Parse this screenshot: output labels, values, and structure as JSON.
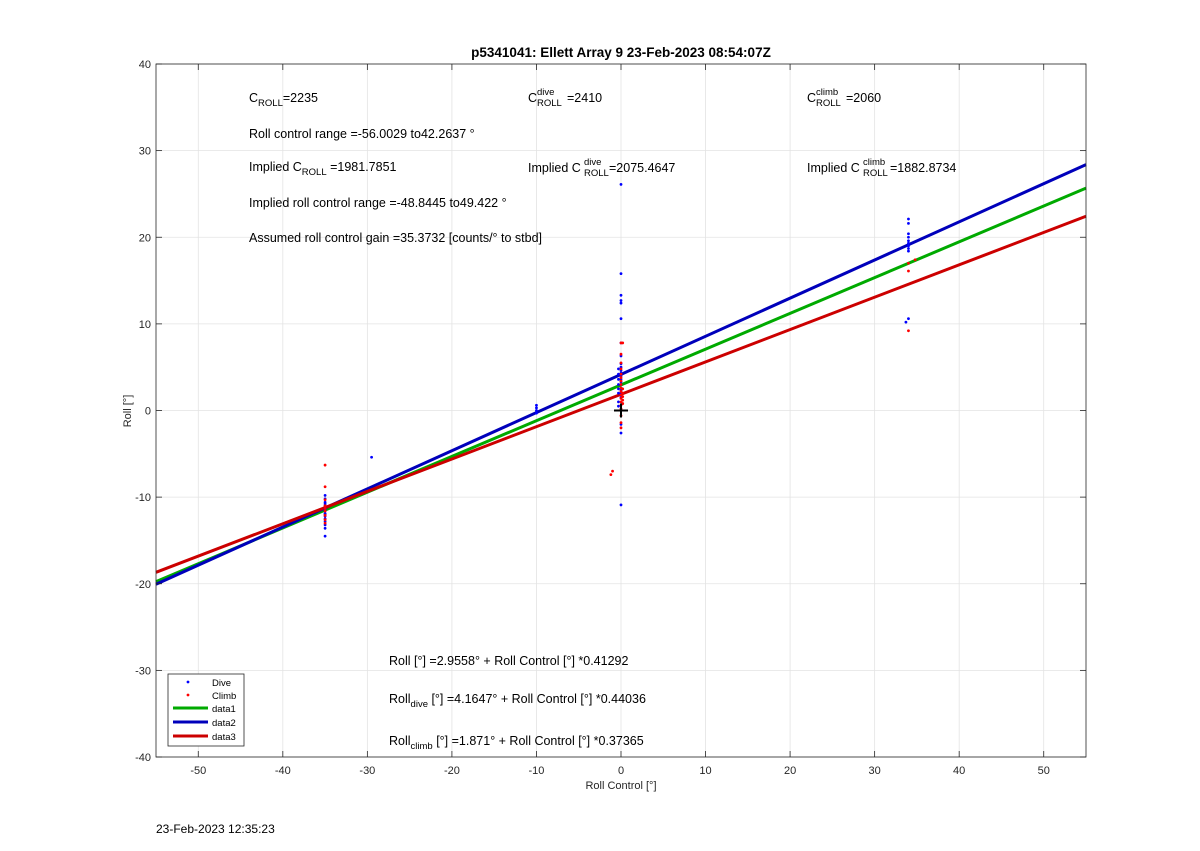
{
  "chart_data": {
    "type": "scatter",
    "title": "p5341041: Ellett Array 9 23-Feb-2023 08:54:07Z",
    "xlabel": "Roll Control [°]",
    "ylabel": "Roll [°]",
    "xlim": [
      -55,
      55
    ],
    "ylim": [
      -40,
      40
    ],
    "xticks": [
      -50,
      -40,
      -30,
      -20,
      -10,
      0,
      10,
      20,
      30,
      40,
      50
    ],
    "yticks": [
      -40,
      -30,
      -20,
      -10,
      0,
      10,
      20,
      30,
      40
    ],
    "grid": true,
    "legend_position": "bottom-left",
    "series": [
      {
        "name": "Dive",
        "kind": "points",
        "color": "#0000ff",
        "x": [
          -35,
          -35,
          -35,
          -35,
          -35,
          -35,
          -35,
          -35,
          -35,
          -35,
          -35,
          -35,
          -35,
          -35,
          -35,
          -35,
          -29.5,
          -10,
          -10,
          -10,
          -10,
          -0.3,
          -0.3,
          -0.3,
          -0.3,
          -0.3,
          -0.3,
          -0.3,
          -0.3,
          0,
          0,
          0,
          0,
          0,
          0,
          0,
          0,
          0,
          0,
          0,
          0,
          0,
          0,
          0,
          0,
          0,
          0,
          0,
          0,
          0,
          0,
          0,
          0,
          34,
          34,
          34,
          34,
          34,
          34,
          34,
          34,
          34,
          34,
          33.7
        ],
        "y": [
          -9.8,
          -10.2,
          -10.6,
          -11.0,
          -11.3,
          -11.6,
          -11.9,
          -12.2,
          -12.5,
          -12.8,
          -13.2,
          -13.6,
          -14.5,
          -10.8,
          -11.4,
          -12.0,
          -5.4,
          0.6,
          0.3,
          0.0,
          -0.3,
          4.8,
          4.2,
          3.6,
          3.0,
          2.5,
          2.0,
          1.0,
          0.5,
          26.1,
          15.8,
          13.3,
          12.7,
          12.4,
          10.6,
          7.8,
          6.3,
          5.4,
          5.0,
          4.6,
          4.3,
          4.0,
          3.6,
          3.3,
          3.0,
          2.6,
          2.3,
          2.0,
          1.5,
          0.0,
          -1.6,
          -2.6,
          -10.9,
          22.1,
          21.6,
          20.4,
          20.0,
          19.6,
          19.3,
          19.0,
          18.7,
          18.4,
          10.6,
          10.2
        ]
      },
      {
        "name": "Climb",
        "kind": "points",
        "color": "#ff0000",
        "x": [
          -35,
          -35,
          -35,
          -35,
          -35,
          -35,
          -35,
          -35,
          -35,
          -1.2,
          -1.0,
          0,
          0,
          0,
          0,
          0,
          0,
          0,
          0,
          0,
          0,
          0,
          0,
          0,
          0,
          0,
          0,
          0,
          0,
          0.2,
          0.2,
          0.2,
          0.2,
          0.2,
          0.2,
          34,
          34,
          34.8,
          34
        ],
        "y": [
          -6.3,
          -8.8,
          -10.3,
          -11.0,
          -11.6,
          -12.1,
          -12.6,
          -13.0,
          -11.3,
          -7.4,
          -7.0,
          7.8,
          6.5,
          5.5,
          4.8,
          4.2,
          3.8,
          3.4,
          3.0,
          2.6,
          2.2,
          1.8,
          1.4,
          1.0,
          0.6,
          0.2,
          -0.6,
          -1.4,
          -2.0,
          7.8,
          2.5,
          2.0,
          1.6,
          1.2,
          0.8,
          17.0,
          16.1,
          17.4,
          9.2
        ]
      },
      {
        "name": "data1",
        "kind": "line",
        "color": "#00aa00",
        "intercept": 2.9558,
        "slope": 0.41292
      },
      {
        "name": "data2",
        "kind": "line",
        "color": "#0000bb",
        "intercept": 4.1647,
        "slope": 0.44036
      },
      {
        "name": "data3",
        "kind": "line",
        "color": "#cc0000",
        "intercept": 1.871,
        "slope": 0.37365
      }
    ],
    "marker": {
      "x": 0,
      "y": 0,
      "symbol": "+"
    },
    "annotations": {
      "c_roll": {
        "label": "C",
        "sub": "ROLL",
        "value": "=2235"
      },
      "c_roll_dive": {
        "label": "C",
        "sup": "dive",
        "sub": "ROLL",
        "value": " =2410"
      },
      "c_roll_climb": {
        "label": "C",
        "sup": "climb",
        "sub": "ROLL",
        "value": " =2060"
      },
      "roll_control_range": "Roll control range =-56.0029 to42.2637 °",
      "implied_c_roll": {
        "prefix": "Implied C",
        "sub": "ROLL",
        "value": " =1981.7851"
      },
      "implied_c_roll_dive": {
        "prefix": "Implied C",
        "sup": "dive",
        "sub": "ROLL",
        "value": " =2075.4647"
      },
      "implied_c_roll_climb": {
        "prefix": "Implied C",
        "sup": "climb",
        "sub": "ROLL",
        "value": " =1882.8734"
      },
      "implied_roll_range": "Implied roll control range =-48.8445 to49.422 °",
      "assumed_gain": "Assumed roll control gain =35.3732 [counts/° to stbd]",
      "fit_all": "Roll [°] =2.9558° + Roll Control [°] *0.41292",
      "fit_dive": {
        "prefix": "Roll",
        "sub": "dive",
        "value": " [°] =4.1647° + Roll Control [°] *0.44036"
      },
      "fit_climb": {
        "prefix": "Roll",
        "sub": "climb",
        "value": " [°] =1.871° + Roll Control [°] *0.37365"
      }
    }
  },
  "footer_timestamp": "23-Feb-2023 12:35:23"
}
